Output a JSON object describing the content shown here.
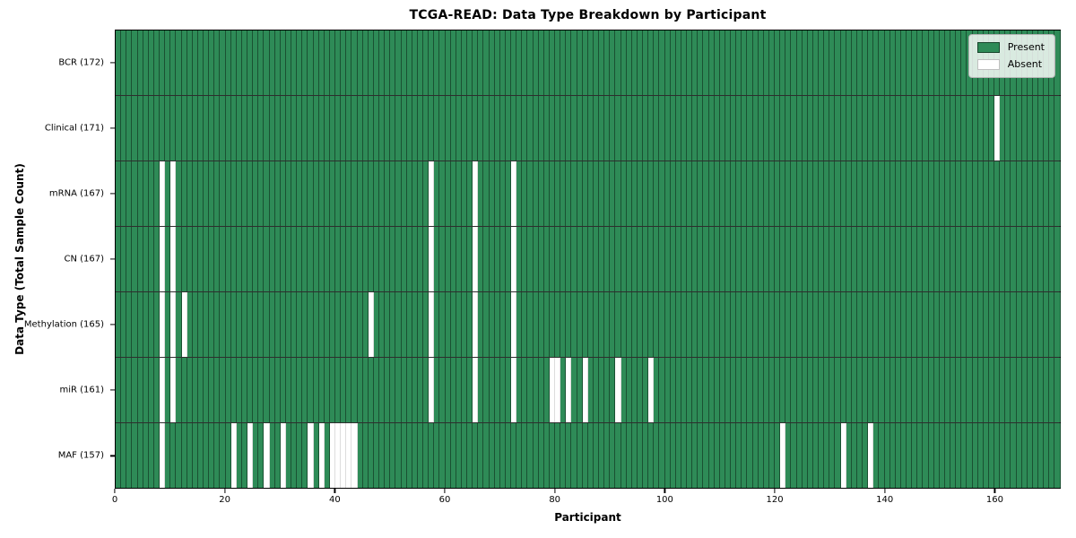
{
  "chart_data": {
    "type": "heatmap",
    "title": "TCGA-READ: Data Type Breakdown by Participant",
    "xlabel": "Participant",
    "ylabel": "Data Type (Total Sample Count)",
    "n_participants": 172,
    "x_ticks": [
      0,
      20,
      40,
      60,
      80,
      100,
      120,
      140,
      160
    ],
    "x_range": [
      0,
      172
    ],
    "grid": "cell-borders",
    "legend_position": "upper right",
    "legend": [
      {
        "label": "Present",
        "color": "#2e8b57",
        "edge": "rgba(0,0,0,0.5)"
      },
      {
        "label": "Absent",
        "color": "#ffffff",
        "edge": "#c0c0c0"
      }
    ],
    "colors": {
      "present": "#2e8b57",
      "absent": "#ffffff",
      "cell_edge": "rgba(8,28,18,0.52)",
      "row_divider": "#000000"
    },
    "rows": [
      {
        "short": "bcr",
        "label": "BCR (172)",
        "present_count": 172,
        "absent": []
      },
      {
        "short": "clinical",
        "label": "Clinical (171)",
        "present_count": 171,
        "absent": [
          160
        ]
      },
      {
        "short": "mrna",
        "label": "mRNA (167)",
        "present_count": 167,
        "absent": [
          8,
          10,
          57,
          65,
          72
        ]
      },
      {
        "short": "cn",
        "label": "CN (167)",
        "present_count": 167,
        "absent": [
          8,
          10,
          57,
          65,
          72
        ]
      },
      {
        "short": "methylation",
        "label": "Methylation (165)",
        "present_count": 165,
        "absent": [
          8,
          10,
          12,
          46,
          57,
          65,
          72
        ]
      },
      {
        "short": "mir",
        "label": "miR (161)",
        "present_count": 161,
        "absent": [
          8,
          10,
          57,
          65,
          72,
          79,
          80,
          82,
          85,
          91,
          97
        ]
      },
      {
        "short": "maf",
        "label": "MAF (157)",
        "present_count": 157,
        "absent": [
          8,
          21,
          24,
          27,
          30,
          35,
          37,
          39,
          40,
          41,
          42,
          43,
          121,
          132,
          137
        ]
      }
    ]
  }
}
